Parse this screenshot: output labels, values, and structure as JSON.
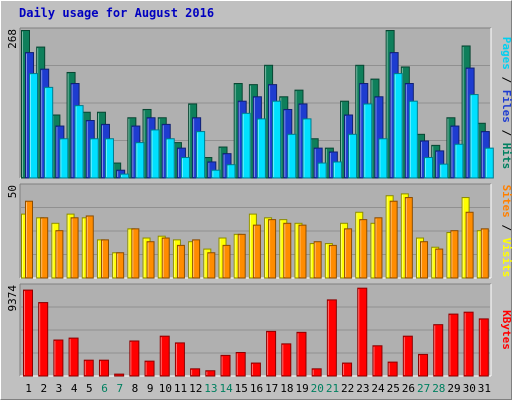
{
  "chart_data": {
    "type": "bar",
    "title": "Daily usage for August 2016",
    "days": [
      "1",
      "2",
      "3",
      "4",
      "5",
      "6",
      "7",
      "8",
      "9",
      "10",
      "11",
      "12",
      "13",
      "14",
      "15",
      "16",
      "17",
      "18",
      "19",
      "20",
      "21",
      "22",
      "23",
      "24",
      "25",
      "26",
      "27",
      "28",
      "29",
      "30",
      "31"
    ],
    "weekend_days": [
      "6",
      "7",
      "13",
      "14",
      "20",
      "21",
      "27",
      "28"
    ],
    "panels": [
      {
        "id": "top",
        "ymax_label": "268",
        "ymax": 268,
        "right_label_parts": [
          {
            "text": "Pages",
            "color": "#00d0f0"
          },
          {
            "text": " / ",
            "color": "#000000"
          },
          {
            "text": "Files",
            "color": "#1e3cd0"
          },
          {
            "text": " / ",
            "color": "#000000"
          },
          {
            "text": "Hits",
            "color": "#008060"
          }
        ],
        "series": [
          {
            "name": "Hits",
            "color": "#0f7f5b",
            "values": [
              268,
              238,
              115,
              192,
              120,
              120,
              28,
              110,
              125,
              110,
              65,
              135,
              38,
              57,
              172,
              170,
              205,
              148,
              160,
              72,
              55,
              140,
              205,
              180,
              268,
              202,
              80,
              60,
              110,
              240,
              100
            ]
          },
          {
            "name": "Files",
            "color": "#1e3cd0",
            "values": [
              228,
              198,
              95,
              172,
              105,
              98,
              15,
              95,
              110,
              98,
              55,
              110,
              30,
              45,
              140,
              148,
              170,
              125,
              135,
              55,
              48,
              115,
              172,
              148,
              228,
              172,
              68,
              50,
              95,
              200,
              85
            ]
          },
          {
            "name": "Pages",
            "color": "#00e0ff",
            "values": [
              190,
              165,
              72,
              132,
              72,
              72,
              8,
              65,
              88,
              72,
              38,
              85,
              15,
              25,
              118,
              108,
              140,
              80,
              108,
              28,
              30,
              80,
              135,
              72,
              190,
              140,
              38,
              26,
              62,
              152,
              55
            ]
          }
        ]
      },
      {
        "id": "middle",
        "ymax_label": "50",
        "ymax": 50,
        "right_label_parts": [
          {
            "text": "Sites",
            "color": "#ff8000"
          },
          {
            "text": " / ",
            "color": "#000000"
          },
          {
            "text": "Visits",
            "color": "#ffff00"
          }
        ],
        "series": [
          {
            "name": "Visits",
            "color": "#ffff00",
            "values": [
              35,
              33,
              30,
              35,
              33,
              21,
              14,
              27,
              22,
              23,
              21,
              20,
              16,
              22,
              24,
              35,
              33,
              32,
              30,
              19,
              19,
              30,
              36,
              30,
              45,
              46,
              22,
              17,
              25,
              44,
              26
            ]
          },
          {
            "name": "Sites",
            "color": "#ff8c00",
            "values": [
              42,
              33,
              26,
              33,
              34,
              21,
              14,
              27,
              20,
              22,
              18,
              21,
              14,
              18,
              24,
              29,
              32,
              30,
              29,
              20,
              18,
              27,
              32,
              33,
              42,
              44,
              20,
              16,
              26,
              36,
              27
            ]
          }
        ]
      },
      {
        "id": "bottom",
        "ymax_label": "9374",
        "ymax": 9374,
        "right_label_parts": [
          {
            "text": "KBytes",
            "color": "#ff0000"
          }
        ],
        "series": [
          {
            "name": "KBytes",
            "color": "#ff0000",
            "values": [
              9000,
              7700,
              3800,
              4000,
              1700,
              1700,
              250,
              3700,
              1600,
              4200,
              3500,
              800,
              600,
              2200,
              2500,
              1400,
              4700,
              3400,
              4600,
              800,
              7980,
              1400,
              9200,
              3200,
              1500,
              4200,
              2300,
              5400,
              6500,
              6700,
              6000
            ]
          }
        ]
      }
    ]
  }
}
